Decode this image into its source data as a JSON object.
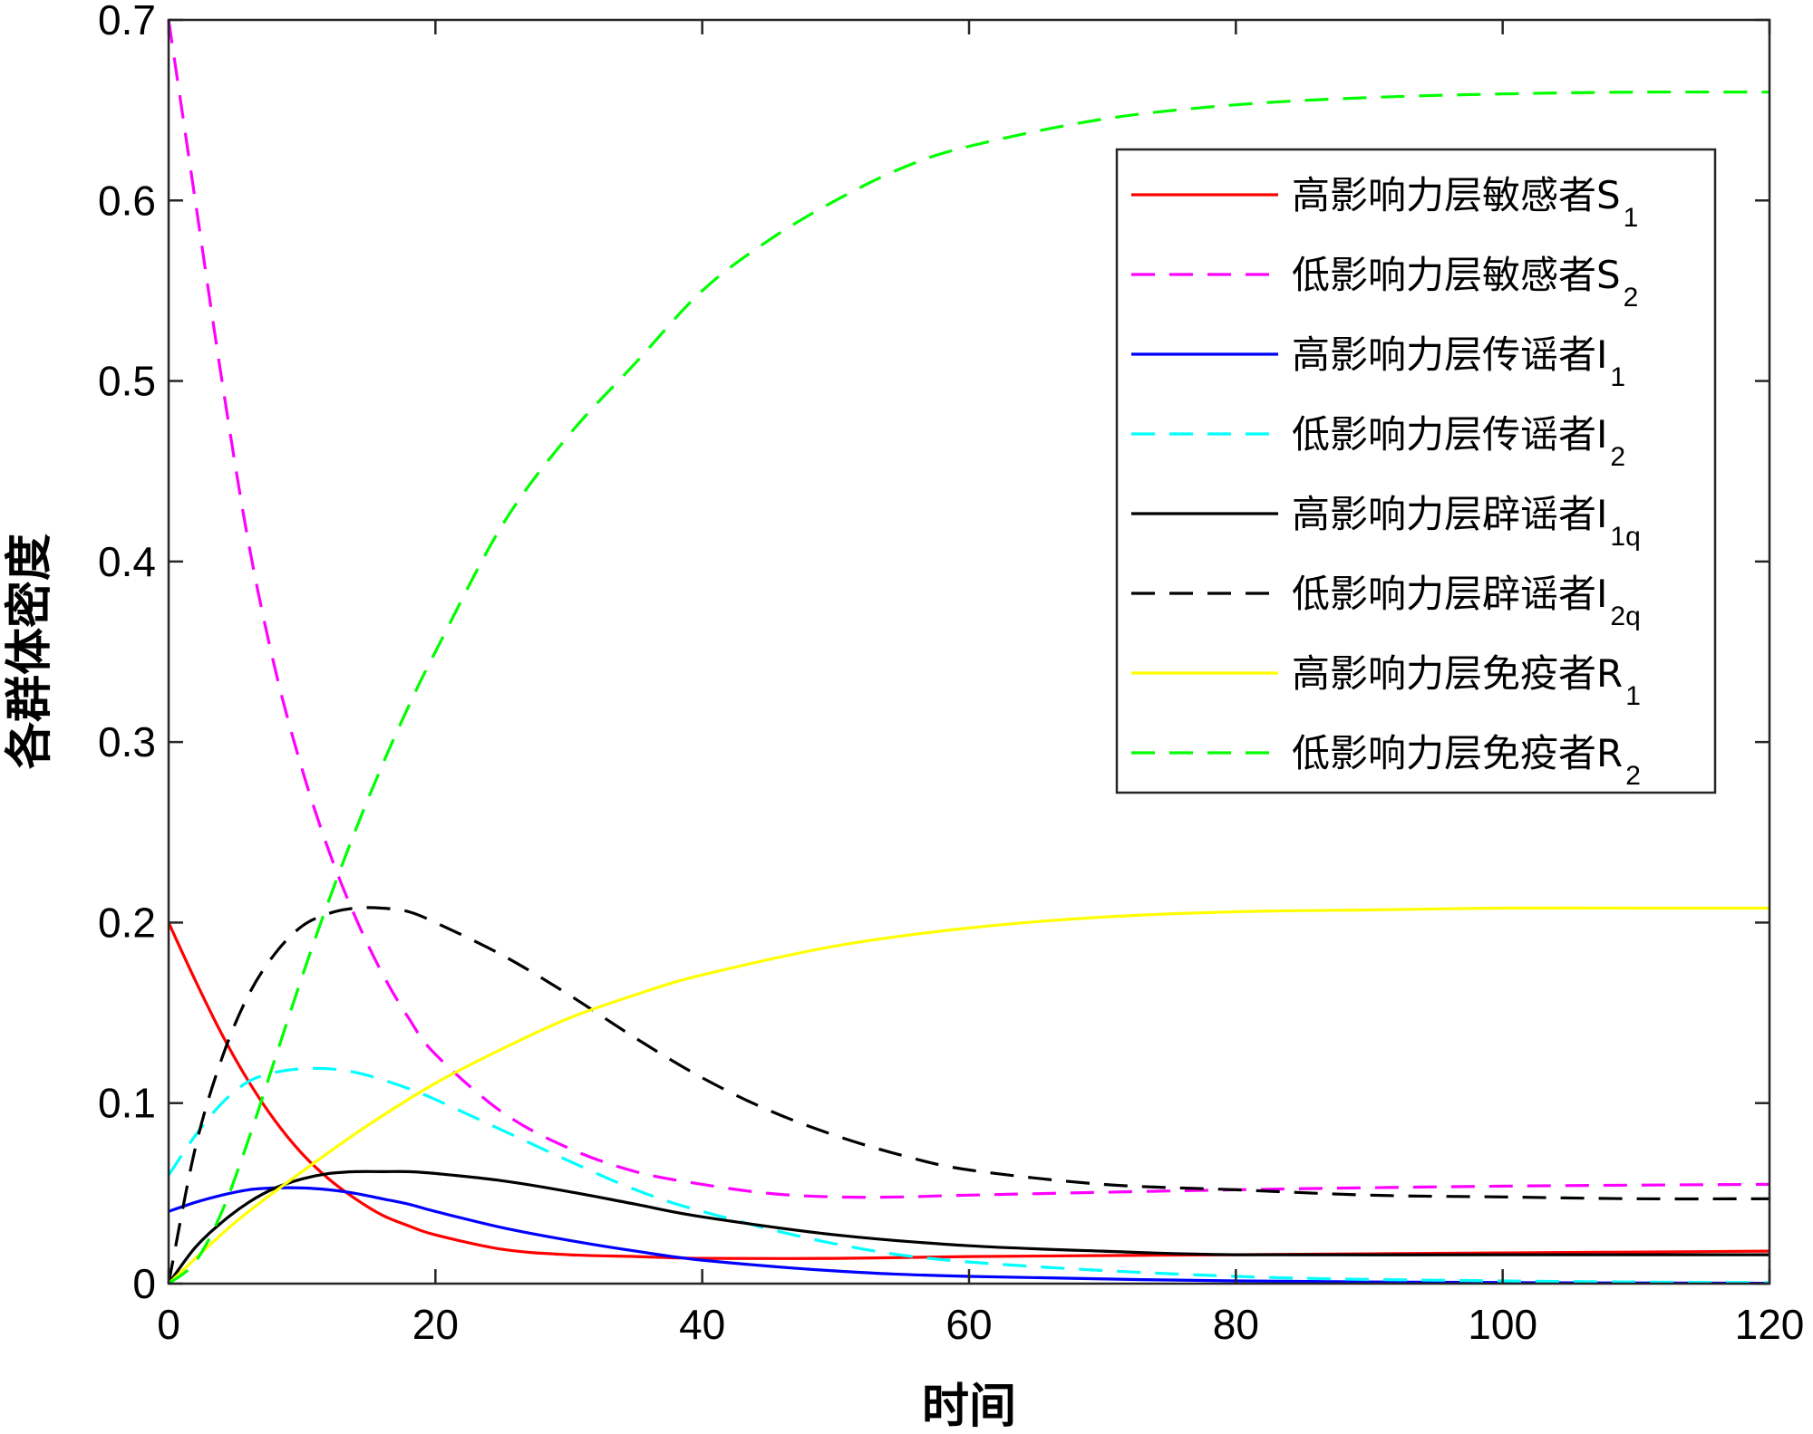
{
  "chart_data": {
    "type": "line",
    "xlabel": "时间",
    "ylabel": "各群体密度",
    "xlim": [
      0,
      120
    ],
    "ylim": [
      0,
      0.7
    ],
    "xticks": [
      0,
      20,
      40,
      60,
      80,
      100,
      120
    ],
    "yticks": [
      0,
      0.1,
      0.2,
      0.3,
      0.4,
      0.5,
      0.6,
      0.7
    ],
    "xtick_labels": [
      "0",
      "20",
      "40",
      "60",
      "80",
      "100",
      "120"
    ],
    "ytick_labels": [
      "0",
      "0.1",
      "0.2",
      "0.3",
      "0.4",
      "0.5",
      "0.6",
      "0.7"
    ],
    "grid": false,
    "legend_position": "top-right",
    "series": [
      {
        "label_main": "高影响力层敏感者S",
        "label_sub": "1",
        "color": "#ff0000",
        "style": "solid",
        "x": [
          0,
          2,
          4,
          6,
          8,
          10,
          12,
          14,
          16,
          18,
          20,
          25,
          30,
          35,
          40,
          50,
          60,
          80,
          100,
          120
        ],
        "y": [
          0.2,
          0.168,
          0.138,
          0.112,
          0.09,
          0.072,
          0.058,
          0.047,
          0.038,
          0.032,
          0.027,
          0.019,
          0.016,
          0.015,
          0.014,
          0.014,
          0.015,
          0.016,
          0.017,
          0.018
        ]
      },
      {
        "label_main": "低影响力层敏感者S",
        "label_sub": "2",
        "color": "#ff00ff",
        "style": "dashed",
        "x": [
          0,
          2,
          4,
          6,
          8,
          10,
          12,
          14,
          16,
          18,
          20,
          25,
          30,
          35,
          40,
          45,
          50,
          55,
          60,
          80,
          100,
          120
        ],
        "y": [
          0.7,
          0.6,
          0.5,
          0.41,
          0.34,
          0.285,
          0.24,
          0.203,
          0.172,
          0.147,
          0.127,
          0.095,
          0.075,
          0.062,
          0.055,
          0.05,
          0.048,
          0.048,
          0.049,
          0.052,
          0.054,
          0.055
        ]
      },
      {
        "label_main": "高影响力层传谣者I",
        "label_sub": "1",
        "color": "#0000ff",
        "style": "solid",
        "x": [
          0,
          2,
          4,
          6,
          8,
          10,
          12,
          14,
          16,
          18,
          20,
          25,
          30,
          35,
          40,
          50,
          60,
          80,
          100,
          120
        ],
        "y": [
          0.04,
          0.045,
          0.049,
          0.052,
          0.053,
          0.053,
          0.052,
          0.05,
          0.047,
          0.044,
          0.04,
          0.031,
          0.024,
          0.018,
          0.013,
          0.007,
          0.004,
          0.0015,
          0.0006,
          0.0002
        ]
      },
      {
        "label_main": "低影响力层传谣者I",
        "label_sub": "2",
        "color": "#00ffff",
        "style": "dashed",
        "x": [
          0,
          2,
          4,
          6,
          8,
          10,
          12,
          14,
          16,
          18,
          20,
          25,
          30,
          35,
          40,
          50,
          60,
          80,
          100,
          120
        ],
        "y": [
          0.06,
          0.082,
          0.1,
          0.112,
          0.117,
          0.119,
          0.119,
          0.117,
          0.113,
          0.108,
          0.102,
          0.085,
          0.068,
          0.052,
          0.04,
          0.022,
          0.012,
          0.004,
          0.0015,
          0.0005
        ]
      },
      {
        "label_main": "高影响力层辟谣者I",
        "label_sub": "1q",
        "color": "#000000",
        "style": "solid",
        "x": [
          0,
          2,
          4,
          6,
          8,
          10,
          12,
          14,
          16,
          18,
          20,
          25,
          30,
          35,
          40,
          50,
          60,
          70,
          80,
          100,
          120
        ],
        "y": [
          0,
          0.02,
          0.034,
          0.045,
          0.053,
          0.058,
          0.061,
          0.062,
          0.062,
          0.062,
          0.061,
          0.057,
          0.051,
          0.044,
          0.037,
          0.027,
          0.021,
          0.018,
          0.016,
          0.016,
          0.016
        ]
      },
      {
        "label_main": "低影响力层辟谣者I",
        "label_sub": "2q",
        "color": "#000000",
        "style": "dashed",
        "x": [
          0,
          2,
          4,
          6,
          8,
          10,
          12,
          14,
          16,
          18,
          20,
          25,
          30,
          35,
          40,
          45,
          50,
          55,
          60,
          70,
          80,
          90,
          100,
          110,
          120
        ],
        "y": [
          0,
          0.075,
          0.125,
          0.16,
          0.183,
          0.198,
          0.205,
          0.208,
          0.208,
          0.206,
          0.2,
          0.182,
          0.16,
          0.136,
          0.114,
          0.096,
          0.082,
          0.071,
          0.063,
          0.055,
          0.052,
          0.049,
          0.048,
          0.047,
          0.047
        ]
      },
      {
        "label_main": "高影响力层免疫者R",
        "label_sub": "1",
        "color": "#ffff00",
        "style": "solid",
        "x": [
          0,
          5,
          10,
          15,
          20,
          25,
          30,
          35,
          40,
          50,
          60,
          70,
          80,
          90,
          100,
          110,
          120
        ],
        "y": [
          0,
          0.034,
          0.062,
          0.088,
          0.111,
          0.13,
          0.147,
          0.16,
          0.171,
          0.187,
          0.197,
          0.203,
          0.206,
          0.207,
          0.208,
          0.208,
          0.208
        ]
      },
      {
        "label_main": "低影响力层免疫者R",
        "label_sub": "2",
        "color": "#00ff00",
        "style": "dashed",
        "x": [
          0,
          2,
          4,
          6,
          8,
          10,
          12,
          14,
          16,
          18,
          20,
          25,
          30,
          35,
          40,
          45,
          50,
          55,
          60,
          70,
          80,
          90,
          100,
          110,
          120
        ],
        "y": [
          0,
          0.012,
          0.04,
          0.08,
          0.125,
          0.17,
          0.212,
          0.251,
          0.287,
          0.32,
          0.35,
          0.42,
          0.47,
          0.51,
          0.55,
          0.578,
          0.6,
          0.618,
          0.63,
          0.645,
          0.653,
          0.657,
          0.659,
          0.66,
          0.66
        ]
      }
    ]
  }
}
